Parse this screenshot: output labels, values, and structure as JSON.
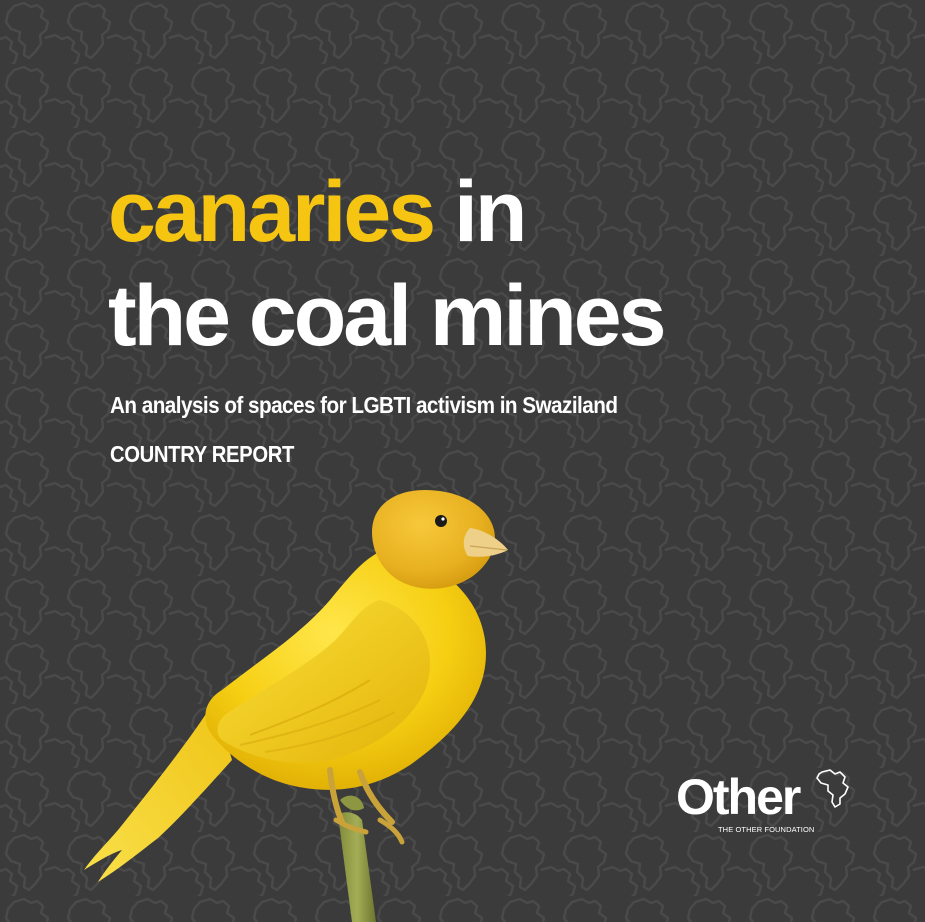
{
  "cover": {
    "background_color": "#3b3b3b",
    "pattern_color": "#474747",
    "accent_color": "#f5c511"
  },
  "title": {
    "accent_word": "canaries",
    "line1_rest": " in",
    "line2": "the coal mines"
  },
  "subtitle": "An analysis of spaces for LGBTI activism in Swaziland",
  "report_type": "COUNTRY REPORT",
  "illustration": {
    "subject": "yellow-canary-on-branch"
  },
  "logo": {
    "word": "Other",
    "tagline": "THE OTHER FOUNDATION",
    "icon": "africa-outline-icon"
  }
}
